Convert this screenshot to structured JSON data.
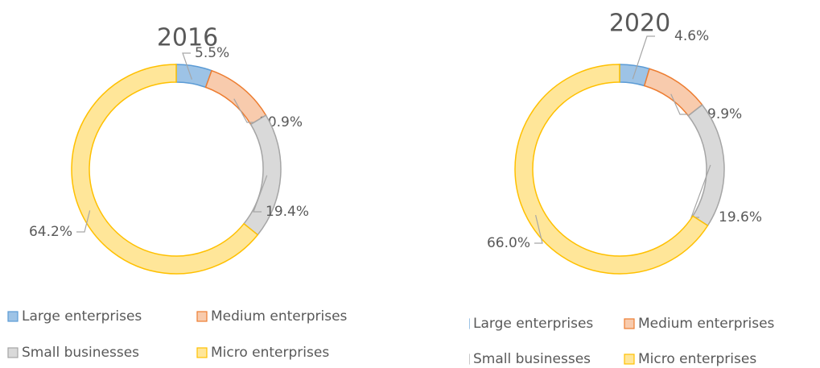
{
  "chart_data": [
    {
      "type": "pie",
      "title": "2016",
      "categories": [
        "Large enterprises",
        "Medium enterprises",
        "Small businesses",
        "Micro enterprises"
      ],
      "values": [
        5.5,
        10.9,
        19.4,
        64.2
      ],
      "value_labels": [
        "5.5%",
        "10.9%",
        "19.4%",
        "64.2%"
      ],
      "colors": [
        "#9dc3e6",
        "#f8cbad",
        "#d9d9d9",
        "#ffe699"
      ]
    },
    {
      "type": "pie",
      "title": "2020",
      "categories": [
        "Large enterprises",
        "Medium enterprises",
        "Small businesses",
        "Micro enterprises"
      ],
      "values": [
        4.6,
        9.9,
        19.6,
        66.0
      ],
      "value_labels": [
        "4.6%",
        "9.9%",
        "19.6%",
        "66.0%"
      ],
      "colors": [
        "#9dc3e6",
        "#f8cbad",
        "#d9d9d9",
        "#ffe699"
      ]
    }
  ]
}
